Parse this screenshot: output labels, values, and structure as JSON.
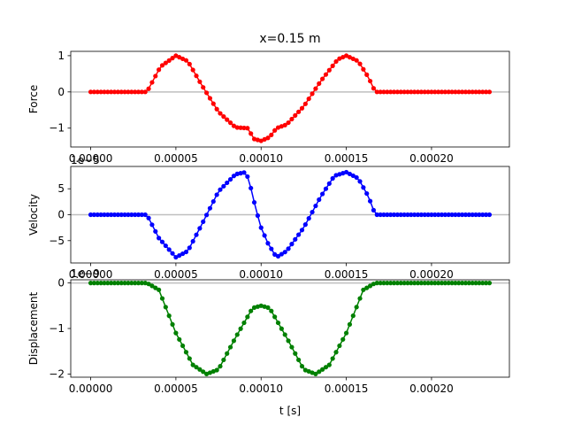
{
  "chart_data": {
    "type": "line",
    "title": "x=0.15 m",
    "xlabel": "t [s]",
    "xlim": [
      -1.17e-05,
      0.0002457
    ],
    "xticks": [
      "0.00000",
      "0.00005",
      "0.00010",
      "0.00015",
      "0.00020"
    ],
    "xtick_values": [
      0,
      5e-05,
      0.0001,
      0.00015,
      0.0002
    ],
    "t_start": 0,
    "t_end": 0.000234,
    "n_points": 118,
    "zero_line": true,
    "panels": [
      {
        "name": "force-panel",
        "ylabel": "Force",
        "color": "#ff0000",
        "ylim": [
          -1.52,
          1.12
        ],
        "yticks": [
          "1",
          "0",
          "−1"
        ],
        "ytick_values": [
          1,
          0,
          -1
        ],
        "offset_text": "",
        "series": [
          {
            "t": 0,
            "y": 0
          },
          {
            "t": 3.3e-05,
            "y": 0
          },
          {
            "t": 4.1e-05,
            "y": 0.7
          },
          {
            "t": 5e-05,
            "y": 1.0
          },
          {
            "t": 5.7e-05,
            "y": 0.85
          },
          {
            "t": 6.5e-05,
            "y": 0.2
          },
          {
            "t": 7.5e-05,
            "y": -0.55
          },
          {
            "t": 8.5e-05,
            "y": -0.98
          },
          {
            "t": 9.2e-05,
            "y": -1.0
          },
          {
            "t": 9.6e-05,
            "y": -1.3
          },
          {
            "t": 0.0001,
            "y": -1.35
          },
          {
            "t": 0.000105,
            "y": -1.25
          },
          {
            "t": 0.000109,
            "y": -1.0
          },
          {
            "t": 0.000115,
            "y": -0.9
          },
          {
            "t": 0.000125,
            "y": -0.4
          },
          {
            "t": 0.000135,
            "y": 0.3
          },
          {
            "t": 0.000145,
            "y": 0.9
          },
          {
            "t": 0.00015,
            "y": 1.0
          },
          {
            "t": 0.000157,
            "y": 0.85
          },
          {
            "t": 0.000163,
            "y": 0.4
          },
          {
            "t": 0.000167,
            "y": 0
          },
          {
            "t": 0.000234,
            "y": 0
          }
        ]
      },
      {
        "name": "velocity-panel",
        "ylabel": "Velocity",
        "color": "#0000ff",
        "ylim": [
          -9.3e-06,
          9.3e-06
        ],
        "yticks": [
          "5",
          "0",
          "−5"
        ],
        "ytick_values": [
          5e-06,
          0,
          -5e-06
        ],
        "offset_text": "1e−5",
        "series": [
          {
            "t": 0,
            "y": 0
          },
          {
            "t": 3.3e-05,
            "y": 0
          },
          {
            "t": 4e-05,
            "y": -4.5e-06
          },
          {
            "t": 5e-05,
            "y": -8.2e-06
          },
          {
            "t": 5.7e-05,
            "y": -7e-06
          },
          {
            "t": 6.5e-05,
            "y": -2e-06
          },
          {
            "t": 7.5e-05,
            "y": 4.5e-06
          },
          {
            "t": 8.5e-05,
            "y": 7.8e-06
          },
          {
            "t": 9.1e-05,
            "y": 8.2e-06
          },
          {
            "t": 9.3e-05,
            "y": 6.5e-06
          },
          {
            "t": 9.7e-05,
            "y": 1e-06
          },
          {
            "t": 0.0001,
            "y": -2.5e-06
          },
          {
            "t": 0.000104,
            "y": -5.5e-06
          },
          {
            "t": 0.000109,
            "y": -8.2e-06
          },
          {
            "t": 0.000115,
            "y": -7e-06
          },
          {
            "t": 0.000125,
            "y": -2.5e-06
          },
          {
            "t": 0.000135,
            "y": 3.5e-06
          },
          {
            "t": 0.000143,
            "y": 7.5e-06
          },
          {
            "t": 0.00015,
            "y": 8.2e-06
          },
          {
            "t": 0.000157,
            "y": 7e-06
          },
          {
            "t": 0.000163,
            "y": 3.5e-06
          },
          {
            "t": 0.000167,
            "y": 0
          },
          {
            "t": 0.000234,
            "y": 0
          }
        ]
      },
      {
        "name": "displacement-panel",
        "ylabel": "Displacement",
        "color": "#008000",
        "ylim": [
          -2.07e-09,
          7e-11
        ],
        "yticks": [
          "0",
          "−1",
          "−2"
        ],
        "ytick_values": [
          0,
          -1e-09,
          -2e-09
        ],
        "offset_text": "1e−9",
        "series": [
          {
            "t": 0,
            "y": 0
          },
          {
            "t": 3.3e-05,
            "y": 0
          },
          {
            "t": 4e-05,
            "y": -1.5e-10
          },
          {
            "t": 5e-05,
            "y": -1.1e-09
          },
          {
            "t": 6e-05,
            "y": -1.8e-09
          },
          {
            "t": 6.8e-05,
            "y": -2e-09
          },
          {
            "t": 7.5e-05,
            "y": -1.9e-09
          },
          {
            "t": 8.5e-05,
            "y": -1.2e-09
          },
          {
            "t": 9.5e-05,
            "y": -5.5e-10
          },
          {
            "t": 0.0001,
            "y": -5e-10
          },
          {
            "t": 0.000105,
            "y": -5.5e-10
          },
          {
            "t": 0.000115,
            "y": -1.2e-09
          },
          {
            "t": 0.000125,
            "y": -1.9e-09
          },
          {
            "t": 0.000132,
            "y": -2e-09
          },
          {
            "t": 0.00014,
            "y": -1.8e-09
          },
          {
            "t": 0.00015,
            "y": -1.1e-09
          },
          {
            "t": 0.00016,
            "y": -1.5e-10
          },
          {
            "t": 0.000167,
            "y": 0
          },
          {
            "t": 0.000234,
            "y": 0
          }
        ]
      }
    ]
  }
}
